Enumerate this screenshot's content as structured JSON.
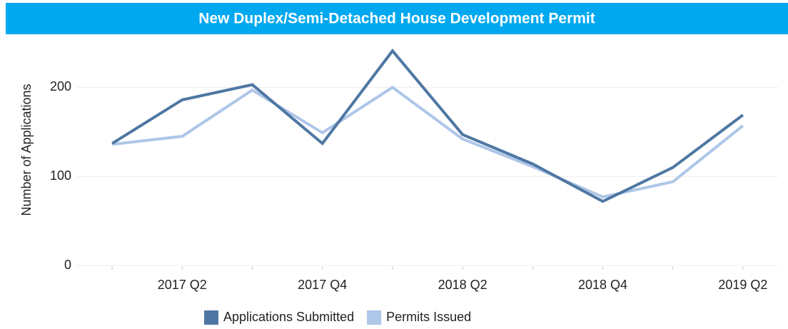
{
  "chart_data": {
    "type": "line",
    "title": "New Duplex/Semi-Detached House Development Permit",
    "y_label": "Number of Applications",
    "categories": [
      null,
      "2017 Q2",
      null,
      "2017 Q4",
      null,
      "2018 Q2",
      null,
      "2018 Q4",
      null,
      "2019 Q2"
    ],
    "series": [
      {
        "name": "Applications Submitted",
        "color": "#4e77a3",
        "values": [
          137,
          186,
          203,
          137,
          241,
          147,
          114,
          72,
          110,
          169
        ]
      },
      {
        "name": "Permits Issued",
        "color": "#aec6e8",
        "values": [
          136,
          145,
          197,
          149,
          200,
          142,
          111,
          77,
          94,
          157
        ]
      }
    ],
    "ylim": [
      0,
      250
    ],
    "yticks": [
      0,
      100,
      200
    ],
    "grid": true,
    "legend": "bottom"
  }
}
